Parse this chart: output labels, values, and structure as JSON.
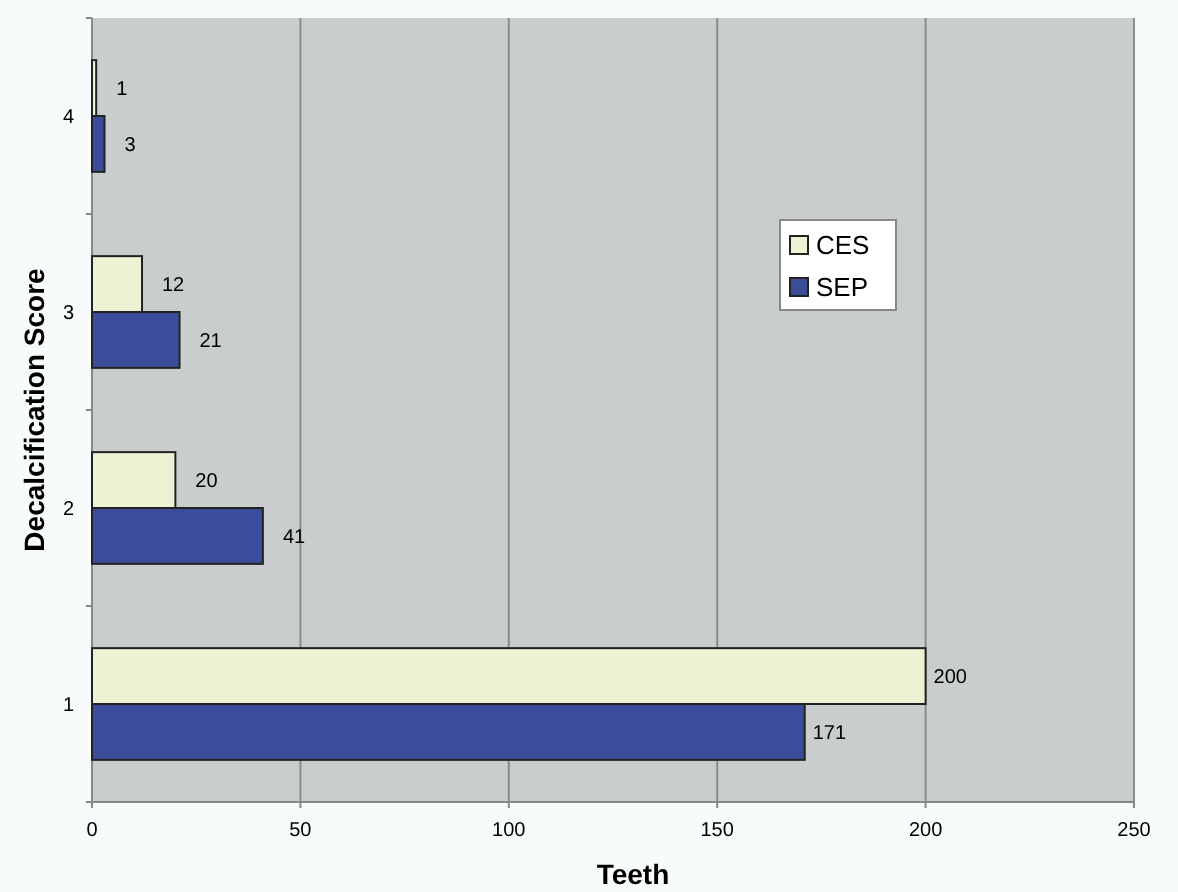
{
  "chart_data": {
    "type": "bar",
    "orientation": "horizontal",
    "xlabel": "Teeth",
    "ylabel": "Decalcification Score",
    "categories": [
      "4",
      "3",
      "2",
      "1"
    ],
    "series": [
      {
        "name": "CES",
        "color": "#eef2d4",
        "values": [
          1,
          12,
          20,
          200
        ]
      },
      {
        "name": "SEP",
        "color": "#3a4c9a",
        "values": [
          3,
          21,
          41,
          171
        ]
      }
    ],
    "xlim": [
      0,
      250
    ],
    "xticks": [
      0,
      50,
      100,
      150,
      200,
      250
    ],
    "grid": "x",
    "legend": "right",
    "data_labels": true
  }
}
